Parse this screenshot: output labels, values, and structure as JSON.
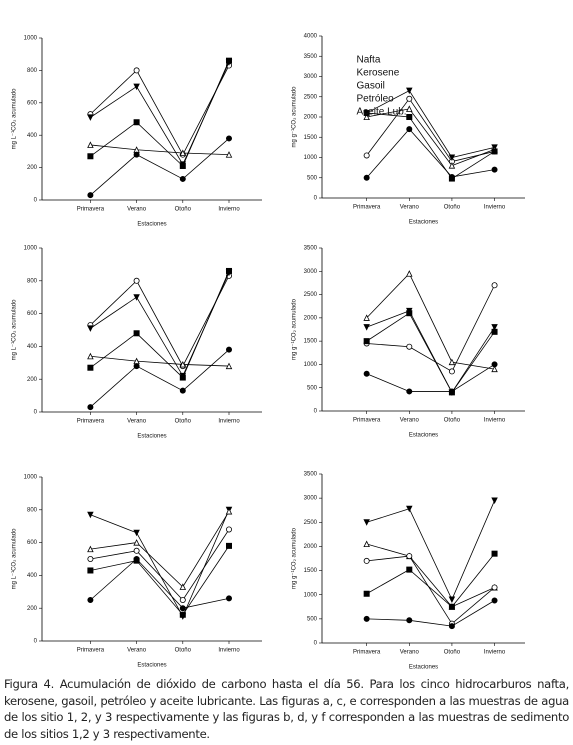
{
  "chart_data": [
    {
      "type": "line",
      "ylabel": "mg L⁻¹CO₂ acumulado",
      "xlabel": "Estaciones",
      "categories": [
        "Primavera",
        "Verano",
        "Otoño",
        "Invierno"
      ],
      "ylim": [
        0,
        1000
      ],
      "yticks": [
        0,
        200,
        400,
        600,
        800,
        1000
      ],
      "series": [
        {
          "color": "#000000",
          "marker": "circle-open",
          "values": [
            530,
            800,
            280,
            830
          ]
        },
        {
          "color": "#000000",
          "marker": "triangle-down-filled",
          "values": [
            510,
            700,
            220,
            850
          ]
        },
        {
          "color": "#000000",
          "marker": "triangle-open",
          "values": [
            340,
            310,
            290,
            280
          ]
        },
        {
          "color": "#000000",
          "marker": "square-filled",
          "values": [
            270,
            480,
            210,
            860
          ]
        },
        {
          "color": "#000000",
          "marker": "circle-filled",
          "values": [
            30,
            280,
            130,
            380
          ]
        }
      ]
    },
    {
      "type": "line",
      "ylabel": "mg g⁻¹CO₂ acumulado",
      "xlabel": "Estaciones",
      "legend": "upper center",
      "categories": [
        "Primavera",
        "Verano",
        "Otoño",
        "Invierno"
      ],
      "ylim": [
        0,
        4000
      ],
      "yticks": [
        0,
        500,
        1000,
        1500,
        2000,
        2500,
        3000,
        3500,
        4000
      ],
      "series": [
        {
          "name": "Nafta",
          "color": "#000000",
          "marker": "circle-open",
          "values": [
            1050,
            2450,
            900,
            1150
          ]
        },
        {
          "name": "Kerosene",
          "color": "#000000",
          "marker": "triangle-down-filled",
          "values": [
            2100,
            2650,
            1000,
            1250
          ]
        },
        {
          "name": "Gasoil",
          "color": "#000000",
          "marker": "triangle-open",
          "values": [
            2000,
            2200,
            800,
            1200
          ]
        },
        {
          "name": "Petróleo",
          "color": "#000000",
          "marker": "square-filled",
          "values": [
            2100,
            2000,
            480,
            1150
          ]
        },
        {
          "name": "Aceite Lub.",
          "color": "#000000",
          "marker": "circle-filled",
          "values": [
            500,
            1700,
            520,
            700
          ]
        }
      ]
    },
    {
      "type": "line",
      "ylabel": "mg L⁻¹CO₂ acumulado",
      "xlabel": "Estaciones",
      "categories": [
        "Primavera",
        "Verano",
        "Otoño",
        "Invierno"
      ],
      "ylim": [
        0,
        1000
      ],
      "yticks": [
        0,
        200,
        400,
        600,
        800,
        1000
      ],
      "series": [
        {
          "color": "#000000",
          "marker": "circle-open",
          "values": [
            530,
            800,
            280,
            830
          ]
        },
        {
          "color": "#000000",
          "marker": "triangle-down-filled",
          "values": [
            510,
            700,
            220,
            850
          ]
        },
        {
          "color": "#000000",
          "marker": "triangle-open",
          "values": [
            340,
            310,
            290,
            280
          ]
        },
        {
          "color": "#000000",
          "marker": "square-filled",
          "values": [
            270,
            480,
            210,
            860
          ]
        },
        {
          "color": "#000000",
          "marker": "circle-filled",
          "values": [
            30,
            280,
            130,
            380
          ]
        }
      ]
    },
    {
      "type": "line",
      "ylabel": "mg g⁻¹CO₂ acumulado",
      "xlabel": "Estaciones",
      "categories": [
        "Primavera",
        "Verano",
        "Otoño",
        "Invierno"
      ],
      "ylim": [
        0,
        3500
      ],
      "yticks": [
        0,
        500,
        1000,
        1500,
        2000,
        2500,
        3000,
        3500
      ],
      "series": [
        {
          "color": "#000000",
          "marker": "circle-open",
          "values": [
            1450,
            1380,
            850,
            2700
          ]
        },
        {
          "color": "#000000",
          "marker": "triangle-down-filled",
          "values": [
            1800,
            2150,
            400,
            1800
          ]
        },
        {
          "color": "#000000",
          "marker": "triangle-open",
          "values": [
            2000,
            2950,
            1050,
            900
          ]
        },
        {
          "color": "#000000",
          "marker": "square-filled",
          "values": [
            1500,
            2100,
            400,
            1700
          ]
        },
        {
          "color": "#000000",
          "marker": "circle-filled",
          "values": [
            800,
            420,
            420,
            1000
          ]
        }
      ]
    },
    {
      "type": "line",
      "ylabel": "mg L⁻¹CO₂ acumulado",
      "xlabel": "Estaciones",
      "categories": [
        "Primavera",
        "Verano",
        "Otoño",
        "Invierno"
      ],
      "ylim": [
        0,
        1000
      ],
      "yticks": [
        0,
        200,
        400,
        600,
        800,
        1000
      ],
      "series": [
        {
          "color": "#000000",
          "marker": "triangle-down-filled",
          "values": [
            770,
            660,
            150,
            800
          ]
        },
        {
          "color": "#000000",
          "marker": "triangle-open",
          "values": [
            560,
            600,
            330,
            790
          ]
        },
        {
          "color": "#000000",
          "marker": "circle-open",
          "values": [
            500,
            550,
            250,
            680
          ]
        },
        {
          "color": "#000000",
          "marker": "square-filled",
          "values": [
            430,
            490,
            160,
            580
          ]
        },
        {
          "color": "#000000",
          "marker": "circle-filled",
          "values": [
            250,
            500,
            200,
            260
          ]
        }
      ]
    },
    {
      "type": "line",
      "ylabel": "mg g⁻¹CO₂ acumulado",
      "xlabel": "Estaciones",
      "categories": [
        "Primavera",
        "Verano",
        "Otoño",
        "Invierno"
      ],
      "ylim": [
        0,
        3500
      ],
      "yticks": [
        0,
        500,
        1000,
        1500,
        2000,
        2500,
        3000,
        3500
      ],
      "series": [
        {
          "color": "#000000",
          "marker": "triangle-down-filled",
          "values": [
            2500,
            2780,
            900,
            2950
          ]
        },
        {
          "color": "#000000",
          "marker": "triangle-open",
          "values": [
            2050,
            1800,
            750,
            1150
          ]
        },
        {
          "color": "#000000",
          "marker": "circle-open",
          "values": [
            1700,
            1800,
            400,
            1150
          ]
        },
        {
          "color": "#000000",
          "marker": "square-filled",
          "values": [
            1020,
            1520,
            750,
            1850
          ]
        },
        {
          "color": "#000000",
          "marker": "circle-filled",
          "values": [
            500,
            470,
            350,
            880
          ]
        }
      ]
    }
  ],
  "caption": "Figura 4. Acumulación de dióxido de carbono hasta el día 56. Para los cinco hidrocarburos nafta, kerosene, gasoil, petróleo y aceite lubricante. Las figuras a, c, e corresponden a las muestras de agua de los sitio 1, 2, y 3 respectivamente y las figuras b, d, y f corresponden a las muestras de sedimento de los sitios 1,2 y 3 respectivamente."
}
